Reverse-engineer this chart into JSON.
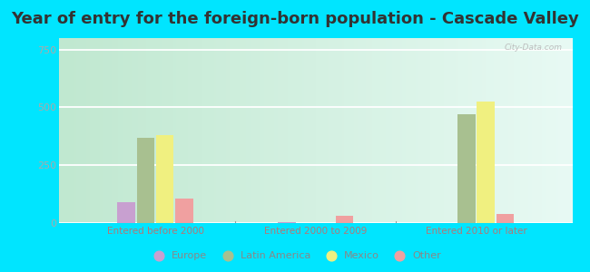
{
  "title": "Year of entry for the foreign-born population - Cascade Valley",
  "categories": [
    "Entered before 2000",
    "Entered 2000 to 2009",
    "Entered 2010 or later"
  ],
  "series": {
    "Europe": [
      90,
      5,
      0
    ],
    "Latin America": [
      370,
      0,
      470
    ],
    "Mexico": [
      380,
      0,
      525
    ],
    "Other": [
      105,
      30,
      40
    ]
  },
  "colors": {
    "Europe": "#c8a0d0",
    "Latin America": "#a8c090",
    "Mexico": "#f0f080",
    "Other": "#f0a0a0"
  },
  "ylim": [
    0,
    800
  ],
  "yticks": [
    0,
    250,
    500,
    750
  ],
  "outer_bg": "#00e5ff",
  "plot_bg_left": "#c8ecd8",
  "plot_bg_right": "#e8faf0",
  "title_fontsize": 13,
  "tick_label_color": "#b07878",
  "ytick_label_color": "#aaaaaa",
  "watermark": "City-Data.com",
  "bar_width": 0.12,
  "legend_label_color": "#888888"
}
